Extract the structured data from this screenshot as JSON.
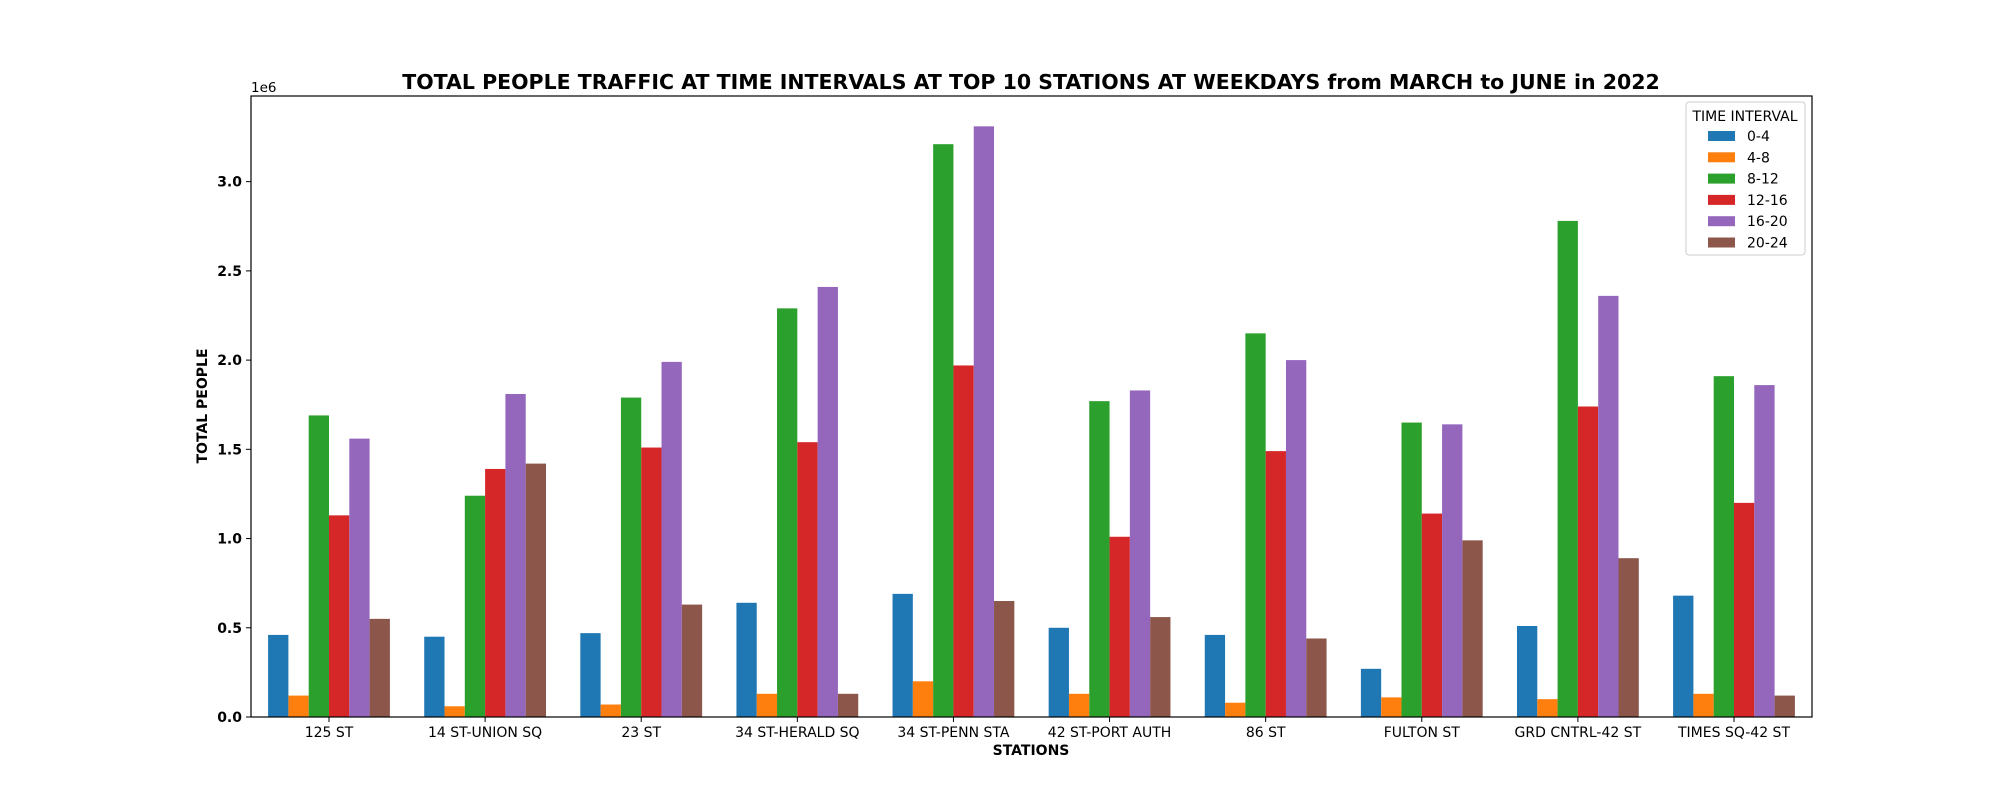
{
  "chart_data": {
    "type": "bar",
    "title": "TOTAL PEOPLE TRAFFIC AT TIME INTERVALS AT TOP 10 STATIONS AT WEEKDAYS from MARCH to JUNE in 2022",
    "xlabel": "STATIONS",
    "ylabel": "TOTAL PEOPLE",
    "y_offset_label": "1e6",
    "ylim": [
      0,
      3.48
    ],
    "y_ticks": [
      0.0,
      0.5,
      1.0,
      1.5,
      2.0,
      2.5,
      3.0
    ],
    "y_tick_labels": [
      "0.0",
      "0.5",
      "1.0",
      "1.5",
      "2.0",
      "2.5",
      "3.0"
    ],
    "grid": false,
    "legend": {
      "title": "TIME INTERVAL",
      "position": "top-right"
    },
    "categories": [
      "125 ST",
      "14 ST-UNION SQ",
      "23 ST",
      "34 ST-HERALD SQ",
      "34 ST-PENN STA",
      "42 ST-PORT AUTH",
      "86 ST",
      "FULTON ST",
      "GRD CNTRL-42 ST",
      "TIMES SQ-42 ST"
    ],
    "series": [
      {
        "name": "0-4",
        "color": "#1f77b4",
        "values": [
          0.46,
          0.45,
          0.47,
          0.64,
          0.69,
          0.5,
          0.46,
          0.27,
          0.51,
          0.68
        ]
      },
      {
        "name": "4-8",
        "color": "#ff7f0e",
        "values": [
          0.12,
          0.06,
          0.07,
          0.13,
          0.2,
          0.13,
          0.08,
          0.11,
          0.1,
          0.13
        ]
      },
      {
        "name": "8-12",
        "color": "#2ca02c",
        "values": [
          1.69,
          1.24,
          1.79,
          2.29,
          3.21,
          1.77,
          2.15,
          1.65,
          2.78,
          1.91
        ]
      },
      {
        "name": "12-16",
        "color": "#d62728",
        "values": [
          1.13,
          1.39,
          1.51,
          1.54,
          1.97,
          1.01,
          1.49,
          1.14,
          1.74,
          1.2
        ]
      },
      {
        "name": "16-20",
        "color": "#9467bd",
        "values": [
          1.56,
          1.81,
          1.99,
          2.41,
          3.31,
          1.83,
          2.0,
          1.64,
          2.36,
          1.86
        ]
      },
      {
        "name": "20-24",
        "color": "#8c564b",
        "values": [
          0.55,
          1.42,
          0.63,
          0.13,
          0.65,
          0.56,
          0.44,
          0.99,
          0.89,
          0.12
        ]
      }
    ]
  }
}
